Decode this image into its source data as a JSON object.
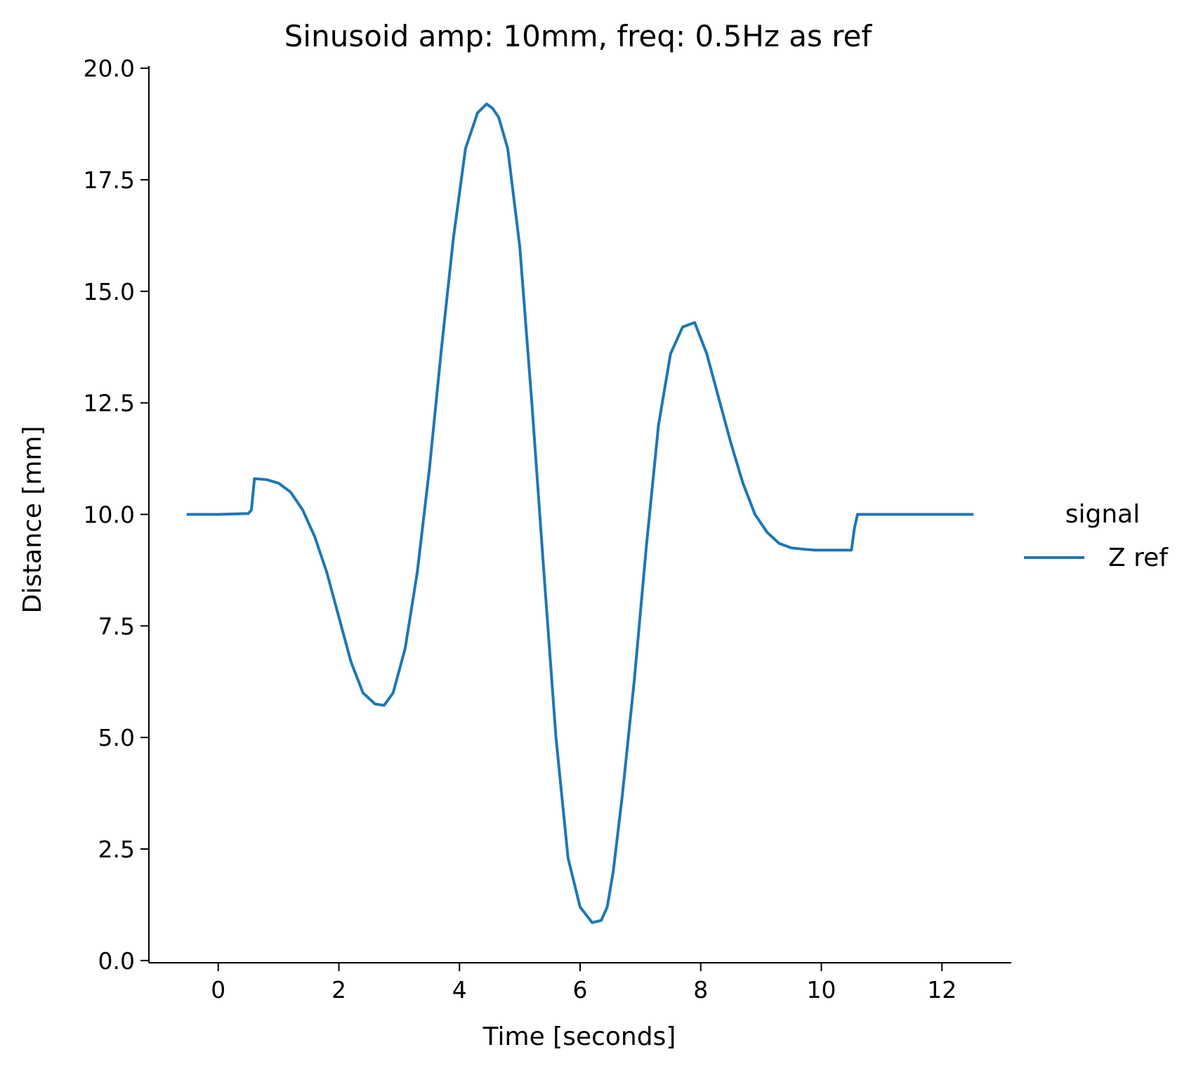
{
  "chart_data": {
    "type": "line",
    "title": "Sinusoid amp: 10mm, freq: 0.5Hz as ref",
    "xlabel": "Time [seconds]",
    "ylabel": "Distance [mm]",
    "xlim": [
      -1.15,
      13.15
    ],
    "ylim": [
      -0.05,
      20.05
    ],
    "xticks": [
      0,
      2,
      4,
      6,
      8,
      10,
      12
    ],
    "xtick_labels": [
      "0",
      "2",
      "4",
      "6",
      "8",
      "10",
      "12"
    ],
    "yticks": [
      0.0,
      2.5,
      5.0,
      7.5,
      10.0,
      12.5,
      15.0,
      17.5,
      20.0
    ],
    "ytick_labels": [
      "0.0",
      "2.5",
      "5.0",
      "7.5",
      "10.0",
      "12.5",
      "15.0",
      "17.5",
      "20.0"
    ],
    "grid": false,
    "legend": {
      "title": "signal",
      "placement": "right"
    },
    "series": [
      {
        "name": "Z ref",
        "color": "#1f77b4",
        "x": [
          -0.5,
          0.0,
          0.5,
          0.55,
          0.6,
          0.8,
          1.0,
          1.2,
          1.4,
          1.6,
          1.8,
          2.0,
          2.2,
          2.4,
          2.6,
          2.75,
          2.9,
          3.1,
          3.3,
          3.5,
          3.7,
          3.9,
          4.1,
          4.3,
          4.45,
          4.55,
          4.65,
          4.8,
          5.0,
          5.2,
          5.4,
          5.6,
          5.8,
          6.0,
          6.2,
          6.35,
          6.45,
          6.55,
          6.7,
          6.9,
          7.1,
          7.3,
          7.5,
          7.7,
          7.9,
          8.1,
          8.3,
          8.5,
          8.7,
          8.9,
          9.1,
          9.3,
          9.5,
          9.7,
          9.9,
          10.1,
          10.3,
          10.5,
          10.55,
          10.6,
          11.0,
          12.0,
          12.5
        ],
        "y": [
          10.0,
          10.0,
          10.02,
          10.1,
          10.8,
          10.78,
          10.7,
          10.5,
          10.1,
          9.5,
          8.7,
          7.7,
          6.7,
          6.0,
          5.75,
          5.72,
          6.0,
          7.0,
          8.7,
          11.0,
          13.7,
          16.2,
          18.2,
          19.0,
          19.2,
          19.1,
          18.9,
          18.2,
          16.0,
          12.5,
          8.7,
          5.0,
          2.3,
          1.2,
          0.85,
          0.9,
          1.2,
          2.0,
          3.7,
          6.3,
          9.3,
          12.0,
          13.6,
          14.2,
          14.3,
          13.6,
          12.6,
          11.6,
          10.7,
          10.0,
          9.6,
          9.35,
          9.25,
          9.22,
          9.2,
          9.2,
          9.2,
          9.2,
          9.7,
          10.0,
          10.0,
          10.0,
          10.0
        ]
      }
    ]
  }
}
